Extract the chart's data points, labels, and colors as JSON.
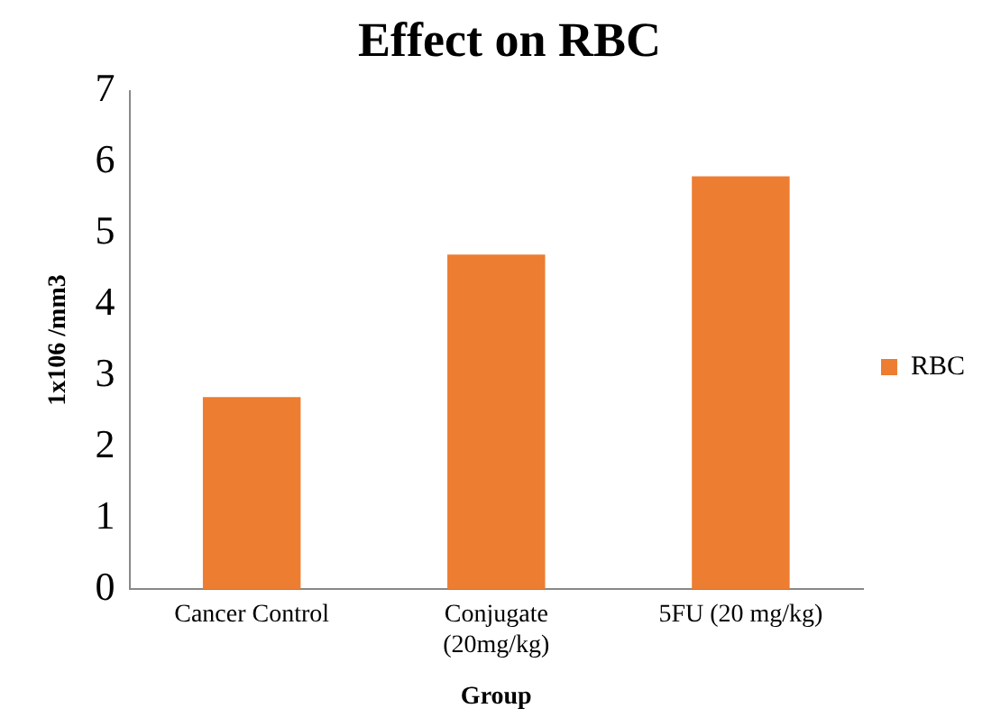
{
  "chart_data": {
    "type": "bar",
    "title": "Effect on RBC",
    "xlabel": "Group",
    "ylabel": "1x106 /mm3",
    "categories": [
      "Cancer Control",
      "Conjugate (20mg/kg)",
      "5FU (20 mg/kg)"
    ],
    "series": [
      {
        "name": "RBC",
        "color": "#ed7d31",
        "values": [
          2.7,
          4.7,
          5.8
        ]
      }
    ],
    "ylim": [
      0,
      7
    ],
    "yticks": [
      0,
      1,
      2,
      3,
      4,
      5,
      6,
      7
    ],
    "grid": false,
    "legend": "right"
  }
}
